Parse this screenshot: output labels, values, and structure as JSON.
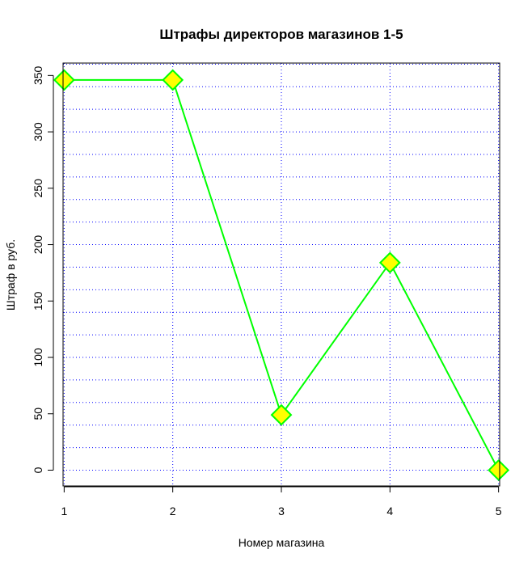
{
  "chart_data": {
    "type": "line",
    "title": "Штрафы директоров магазинов 1-5",
    "xlabel": "Номер магазина",
    "ylabel": "Штраф в руб.",
    "x": [
      1,
      2,
      3,
      4,
      5
    ],
    "series": [
      {
        "values": [
          346,
          346,
          49,
          184,
          0
        ]
      }
    ],
    "xlim": [
      0.99,
      5.01
    ],
    "ylim": [
      -14,
      361
    ],
    "x_ticks": [
      1,
      2,
      3,
      4,
      5
    ],
    "y_ticks": [
      0,
      50,
      100,
      150,
      200,
      250,
      300,
      350
    ],
    "grid": true,
    "grid_style": "dotted",
    "horizontal_grid_step": 20,
    "colors": {
      "line": "#00ff00",
      "marker_fill": "#ffff00",
      "marker_edge": "#00ff00",
      "grid": "#0000ff"
    },
    "marker": "diamond"
  }
}
